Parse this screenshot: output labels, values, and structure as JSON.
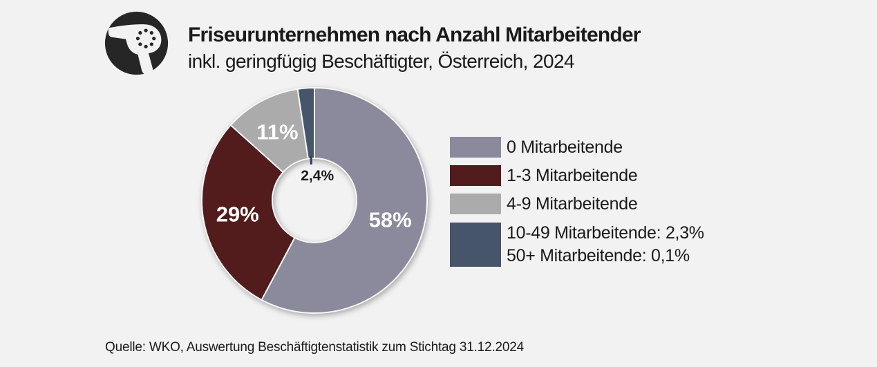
{
  "header": {
    "title": "Friseurunternehmen nach Anzahl Mitarbeitender",
    "subtitle": "inkl. geringfügig Beschäftigter, Österreich, 2024"
  },
  "chart_data": {
    "type": "pie",
    "donut": true,
    "start_angle_deg": 0,
    "direction": "clockwise",
    "title": "Friseurunternehmen nach Anzahl Mitarbeitender",
    "subtitle": "inkl. geringfügig Beschäftigter, Österreich, 2024",
    "slices": [
      {
        "label": "0 Mitarbeitende",
        "value": 58,
        "display": "58%",
        "color": "#8b8a9d",
        "label_placement": "inside",
        "label_color": "#ffffff"
      },
      {
        "label": "1-3 Mitarbeitende",
        "value": 29,
        "display": "29%",
        "color": "#521c1c",
        "label_placement": "inside",
        "label_color": "#ffffff"
      },
      {
        "label": "4-9 Mitarbeitende",
        "value": 11,
        "display": "11%",
        "color": "#ababab",
        "label_placement": "inside",
        "label_color": "#ffffff"
      },
      {
        "label": "10-49 und 50+ Mitarbeitende",
        "value": 2.4,
        "display": "2,4%",
        "color": "#47556b",
        "label_placement": "callout",
        "label_color": "#1a1a1a",
        "sub_values": [
          {
            "label": "10-49 Mitarbeitende",
            "value": 2.3
          },
          {
            "label": "50+ Mitarbeitende",
            "value": 0.1
          }
        ]
      }
    ]
  },
  "legend": {
    "items": [
      {
        "color": "#8b8a9d",
        "lines": [
          "0 Mitarbeitende"
        ]
      },
      {
        "color": "#521c1c",
        "lines": [
          "1-3 Mitarbeitende"
        ]
      },
      {
        "color": "#ababab",
        "lines": [
          "4-9 Mitarbeitende"
        ]
      },
      {
        "color": "#47556b",
        "lines": [
          "10-49 Mitarbeitende: 2,3%",
          "50+ Mitarbeitende: 0,1%"
        ]
      }
    ]
  },
  "footer": {
    "source": "Quelle: WKO, Auswertung Beschäftigtenstatistik zum Stichtag 31.12.2024"
  },
  "colors": {
    "background": "#f2f2f2",
    "icon": "#262626",
    "text": "#1a1a1a",
    "slice_separator": "#f7f7f7",
    "callout_line": "#2e3f58"
  }
}
